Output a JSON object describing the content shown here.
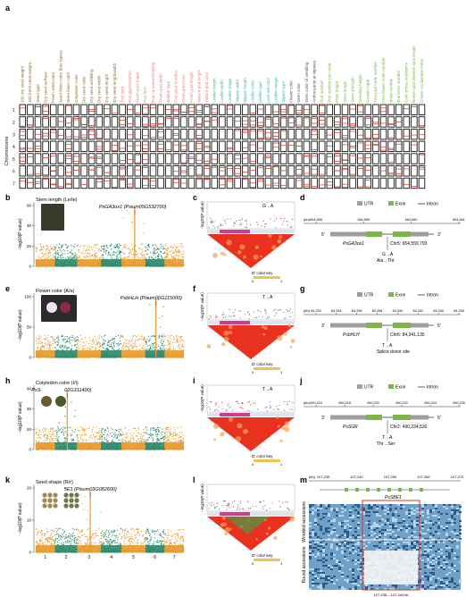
{
  "panel_labels": [
    "a",
    "b",
    "c",
    "d",
    "e",
    "f",
    "g",
    "h",
    "i",
    "j",
    "k",
    "l",
    "m"
  ],
  "traits": [
    {
      "name": "100 dry seed weight",
      "c": "#8a6d2f"
    },
    {
      "name": "100 fresh seed weight",
      "c": "#8a6d2f"
    },
    {
      "name": "Seed type",
      "c": "#8a6d2f"
    },
    {
      "name": "Dry seed surface",
      "c": "#8a6d2f"
    },
    {
      "name": "Fresh seed color",
      "c": "#8a6d2f"
    },
    {
      "name": "Seed hilum color (four types)",
      "c": "#8a6d2f"
    },
    {
      "name": "Seed hilum color",
      "c": "#8a6d2f"
    },
    {
      "name": "Cotyledon color",
      "c": "#8a6d2f"
    },
    {
      "name": "Dry seed color",
      "c": "#8a6d2f"
    },
    {
      "name": "Dry seed wrinkling",
      "c": "#8a6d2f"
    },
    {
      "name": "Dry seed width",
      "c": "#8a6d2f"
    },
    {
      "name": "Dry seed length",
      "c": "#8a6d2f"
    },
    {
      "name": "Dry seed length/width",
      "c": "#8a6d2f"
    },
    {
      "name": "Pod type",
      "c": "#e8838a"
    },
    {
      "name": "Pod pigmentation",
      "c": "#e8838a"
    },
    {
      "name": "Fresh pod shape",
      "c": "#e8838a"
    },
    {
      "name": "Pod form",
      "c": "#e8838a"
    },
    {
      "name": "Pod curvature/shelling",
      "c": "#e8838a"
    },
    {
      "name": "Fresh pod width",
      "c": "#e8838a"
    },
    {
      "name": "Bubble type",
      "c": "#e8838a"
    },
    {
      "name": "Pod seed number",
      "c": "#e8838a"
    },
    {
      "name": "Fresh pod color",
      "c": "#e8838a"
    },
    {
      "name": "Fresh pod length",
      "c": "#e8838a"
    },
    {
      "name": "Mature pod length",
      "c": "#e8838a"
    },
    {
      "name": "Mature pod color",
      "c": "#e8838a"
    },
    {
      "name": "Leaflet length",
      "c": "#3fb6a8"
    },
    {
      "name": "Leaflet width",
      "c": "#3fb6a8"
    },
    {
      "name": "Leaflet shape",
      "c": "#3fb6a8"
    },
    {
      "name": "Stipule width",
      "c": "#3fb6a8"
    },
    {
      "name": "Stipule length",
      "c": "#3fb6a8"
    },
    {
      "name": "Leaflet color",
      "c": "#3fb6a8"
    },
    {
      "name": "Leaflet type",
      "c": "#3fb6a8"
    },
    {
      "name": "Leaf axil color",
      "c": "#3fb6a8"
    },
    {
      "name": "Leaflet margin",
      "c": "#3fb6a8"
    },
    {
      "name": "Stipule type",
      "c": "#3fb6a8"
    },
    {
      "name": "Flower color",
      "c": "#555555"
    },
    {
      "name": "Stem color",
      "c": "#555555"
    },
    {
      "name": "Stem color of seedling",
      "c": "#555555"
    },
    {
      "name": "Anthocyanin at stipules",
      "c": "#555555"
    },
    {
      "name": "Pod number",
      "c": "#7ab648"
    },
    {
      "name": "Pod number per node",
      "c": "#7ab648"
    },
    {
      "name": "Plant height",
      "c": "#7ab648"
    },
    {
      "name": "Stem length",
      "c": "#7ab648"
    },
    {
      "name": "Stem strength",
      "c": "#7ab648"
    },
    {
      "name": "Seedling height",
      "c": "#7ab648"
    },
    {
      "name": "Growth habit",
      "c": "#7ab648"
    },
    {
      "name": "First pod node number",
      "c": "#7ab648"
    },
    {
      "name": "First flower node number",
      "c": "#7ab648"
    },
    {
      "name": "Node number",
      "c": "#7ab648"
    },
    {
      "name": "Branches number",
      "c": "#7ab648"
    },
    {
      "name": "Cold stress resistance",
      "c": "#7ab648"
    },
    {
      "name": "Brown spot disease spot length",
      "c": "#7ab648"
    },
    {
      "name": "Crown rot disease index",
      "c": "#7ab648"
    }
  ],
  "chromosome_axis_label": "Chromosome",
  "chromosomes": [
    "1",
    "2",
    "3",
    "4",
    "5",
    "6",
    "7"
  ],
  "rows": [
    {
      "trait_title": "Stem length (Le/le)",
      "gene": "PsGA3ox1",
      "gene_id": "Psium05G532700",
      "peak_chr": 5,
      "yticks": [
        "0",
        "20",
        "40",
        "60"
      ],
      "ld_snp": "G→A",
      "struct": {
        "chr_label": "(kb)",
        "ticks": [
          "654,558",
          "654,559",
          "654,560",
          "654,561"
        ],
        "gene_name": "PsGA3ox1",
        "pos": "Chr5: 654,559,793",
        "allele": "G→A",
        "effect": "Ala→Thr",
        "strand_left": "5'",
        "strand_right": "3'"
      }
    },
    {
      "trait_title": "Flower color (A/a)",
      "gene": "PsbHLH",
      "gene_id": "Pisum06G115000",
      "peak_chr": 6,
      "yticks": [
        "0",
        "50",
        "100"
      ],
      "ld_snp": "T→A",
      "struct": {
        "chr_label": "(kb)",
        "ticks": [
          "84,332",
          "84,334",
          "84,336",
          "84,338",
          "84,340",
          "84,342",
          "84,344",
          "84,346"
        ],
        "gene_name": "PsbHLH",
        "pos": "Chr6: 84,341,135",
        "allele": "T→A",
        "effect": "Splice donor site",
        "strand_left": "3'",
        "strand_right": "5'"
      }
    },
    {
      "trait_title": "Cotyledon color (I/i)",
      "gene": "PsSGR",
      "gene_id": "Pisum02G311400",
      "peak_chr": 2,
      "yticks": [
        "0",
        "20",
        "40",
        "60"
      ],
      "ld_snp": "T→A",
      "struct": {
        "chr_label": "(kb)",
        "ticks": [
          "490,216",
          "490,218",
          "490,220",
          "490,222",
          "490,224",
          "490,226"
        ],
        "gene_name": "PsSGR",
        "pos": "Chr2: 490,224,530",
        "allele": "T→A",
        "effect": "Thr→Ser",
        "strand_left": "3'",
        "strand_right": "5'"
      }
    },
    {
      "trait_title": "Seed shape (R/r)",
      "gene": "PsSBE1",
      "gene_id": "Pisum03G082600",
      "peak_chr": 3,
      "yticks": [
        "0",
        "10",
        "20"
      ],
      "ld_snp": "",
      "struct": null
    }
  ],
  "ylabel": "−log10(P value)",
  "ld_ylabel": "−log10(P value)",
  "color_key": {
    "label": "D' color key",
    "min": "0",
    "max": "1"
  },
  "legend": {
    "utr": "UTR",
    "exon": "Exon",
    "intron": "Intron",
    "utr_color": "#9e9e9e",
    "exon_color": "#7ab648"
  },
  "xaxis_chrs": [
    "1",
    "2",
    "3",
    "4",
    "5",
    "6",
    "7"
  ],
  "panel_m": {
    "ticks": [
      "107,230",
      "107,240",
      "107,250",
      "107,260",
      "107,270"
    ],
    "kb": "(kb)",
    "gene": "PsSBE1",
    "row1": "Wrinkled accessions",
    "row2": "Round accessions",
    "range": "107,238 – 107,244 kb"
  },
  "colors": {
    "green": "#2e8b6a",
    "orange": "#e89a2c",
    "red": "#d7301f"
  }
}
